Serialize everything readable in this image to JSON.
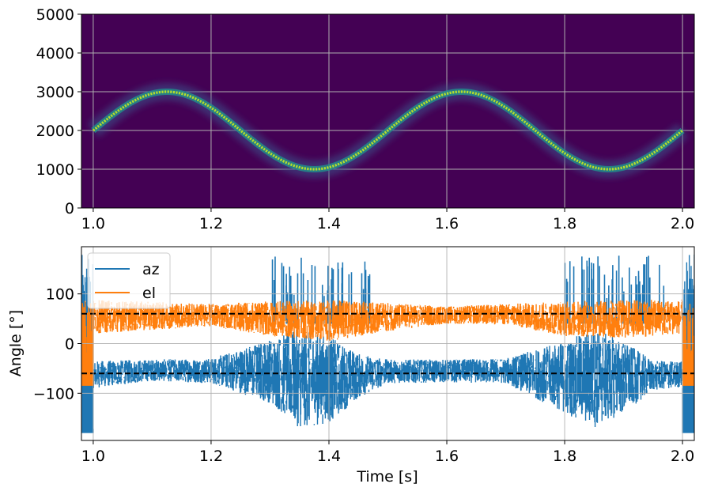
{
  "chart_data": [
    {
      "type": "heatmap",
      "title": "",
      "xlabel": "",
      "ylabel": "",
      "xlim": [
        0.98,
        2.02
      ],
      "ylim": [
        0,
        5000
      ],
      "xticks": [
        1.0,
        1.2,
        1.4,
        1.6,
        1.8,
        2.0
      ],
      "xtick_labels": [
        "1.0",
        "1.2",
        "1.4",
        "1.6",
        "1.8",
        "2.0"
      ],
      "yticks": [
        0,
        1000,
        2000,
        3000,
        4000,
        5000
      ],
      "ytick_labels": [
        "0",
        "1000",
        "2000",
        "3000",
        "4000",
        "5000"
      ],
      "grid": true,
      "colormap": "viridis",
      "background_color": "#440154",
      "signal": {
        "description_free": true,
        "t_start": 1.0,
        "t_end": 2.0,
        "center_frequency": 2000,
        "amplitude": 1000,
        "period": 0.5,
        "peak_color": "#b5de2b"
      }
    },
    {
      "type": "line",
      "title": "",
      "xlabel": "Time [s]",
      "ylabel": "Angle [°]",
      "xlim": [
        0.98,
        2.02
      ],
      "ylim": [
        -195,
        195
      ],
      "xticks": [
        1.0,
        1.2,
        1.4,
        1.6,
        1.8,
        2.0
      ],
      "xtick_labels": [
        "1.0",
        "1.2",
        "1.4",
        "1.6",
        "1.8",
        "2.0"
      ],
      "yticks": [
        -100,
        0,
        100
      ],
      "ytick_labels": [
        "−100",
        "0",
        "100"
      ],
      "grid": true,
      "legend_position": "top-left",
      "series": [
        {
          "name": "az",
          "color": "#1f77b4",
          "center": -58,
          "edge_min": -180,
          "edge_max": 180,
          "envelope_t": [
            1.0,
            1.1,
            1.2,
            1.3,
            1.35,
            1.4,
            1.45,
            1.5,
            1.6,
            1.7,
            1.8,
            1.85,
            1.9,
            1.95,
            2.0
          ],
          "envelope_low": [
            -90,
            -75,
            -80,
            -120,
            -170,
            -160,
            -110,
            -80,
            -78,
            -80,
            -140,
            -170,
            -140,
            -95,
            -88
          ],
          "envelope_high": [
            -35,
            -32,
            -30,
            10,
            30,
            15,
            -20,
            -32,
            -32,
            -30,
            5,
            30,
            5,
            -35,
            -35
          ]
        },
        {
          "name": "el",
          "color": "#ff7f0e",
          "center": 60,
          "edge_min": -85,
          "edge_max": 90,
          "envelope_t": [
            1.0,
            1.2,
            1.3,
            1.4,
            1.5,
            1.6,
            1.7,
            1.8,
            1.9,
            2.0
          ],
          "envelope_low": [
            20,
            35,
            15,
            5,
            25,
            40,
            38,
            15,
            10,
            20
          ],
          "envelope_high": [
            88,
            80,
            85,
            88,
            82,
            75,
            80,
            85,
            88,
            88
          ]
        }
      ],
      "reference_lines": [
        {
          "y": 60,
          "style": "dashed",
          "color": "#000000"
        },
        {
          "y": -60,
          "style": "dashed",
          "color": "#000000"
        }
      ],
      "spikes": {
        "t_ranges": [
          [
            1.3,
            1.47
          ],
          [
            1.8,
            1.97
          ]
        ],
        "max_value": 178
      }
    }
  ]
}
